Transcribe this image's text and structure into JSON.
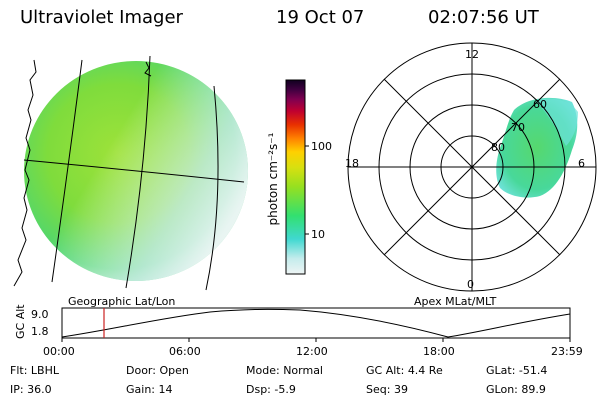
{
  "header": {
    "title": "Ultraviolet Imager",
    "date": "19 Oct 07",
    "time": "02:07:56 UT"
  },
  "colorbar": {
    "label": "photon cm⁻²s⁻¹",
    "ticks": [
      "100",
      "10"
    ],
    "scale": "log",
    "colors": [
      "#eef4f4",
      "#c4ecec",
      "#40d8d0",
      "#32e070",
      "#96e020",
      "#d8e010",
      "#ffd000",
      "#ff8000",
      "#e83000",
      "#c00030",
      "#800050",
      "#400040",
      "#100020"
    ]
  },
  "geographic_panel": {
    "caption": "Geographic Lat/Lon"
  },
  "apex_panel": {
    "caption": "Apex MLat/MLT",
    "mlt_labels": [
      "12",
      "18",
      "6",
      "0"
    ],
    "mlat_labels": [
      "60",
      "70",
      "80"
    ]
  },
  "altitude_plot": {
    "ylabel": "GC Alt",
    "yticks": [
      "9.0",
      "1.8"
    ],
    "xticks": [
      "00:00",
      "06:00",
      "12:00",
      "18:00",
      "23:59"
    ],
    "marker_time": "02:07:56",
    "marker_color": "#cc2020"
  },
  "status": {
    "row1": [
      {
        "key": "Flt:",
        "value": "LBHL"
      },
      {
        "key": "Door:",
        "value": "Open"
      },
      {
        "key": "Mode:",
        "value": "Normal"
      },
      {
        "key": "GC Alt:",
        "value": "4.4 Re"
      },
      {
        "key": "GLat:",
        "value": "-51.4"
      }
    ],
    "row2": [
      {
        "key": "IP:",
        "value": "36.0"
      },
      {
        "key": "Gain:",
        "value": "14"
      },
      {
        "key": "Dsp:",
        "value": "-5.9"
      },
      {
        "key": "Seq:",
        "value": "39"
      },
      {
        "key": "GLon:",
        "value": "89.9"
      }
    ]
  }
}
